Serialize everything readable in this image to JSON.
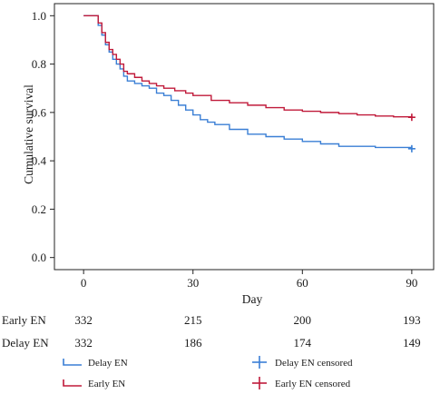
{
  "chart_data": {
    "type": "line",
    "subtype": "kaplan-meier",
    "title": "",
    "xlabel": "Day",
    "ylabel": "Cumulative survival",
    "xlim": [
      -8,
      96
    ],
    "ylim": [
      -0.05,
      1.05
    ],
    "xticks": [
      0,
      30,
      60,
      90
    ],
    "yticks": [
      "0.0",
      "0.2",
      "0.4",
      "0.6",
      "0.8",
      "1.0"
    ],
    "grid": false,
    "series": [
      {
        "name": "Delay EN",
        "color": "#3a7fd5",
        "points": [
          [
            0,
            1.0
          ],
          [
            3,
            1.0
          ],
          [
            4,
            0.96
          ],
          [
            5,
            0.92
          ],
          [
            6,
            0.88
          ],
          [
            7,
            0.85
          ],
          [
            8,
            0.82
          ],
          [
            9,
            0.8
          ],
          [
            10,
            0.78
          ],
          [
            11,
            0.75
          ],
          [
            12,
            0.73
          ],
          [
            14,
            0.72
          ],
          [
            16,
            0.71
          ],
          [
            18,
            0.7
          ],
          [
            20,
            0.68
          ],
          [
            22,
            0.67
          ],
          [
            24,
            0.65
          ],
          [
            26,
            0.63
          ],
          [
            28,
            0.61
          ],
          [
            30,
            0.59
          ],
          [
            32,
            0.57
          ],
          [
            34,
            0.56
          ],
          [
            36,
            0.55
          ],
          [
            40,
            0.53
          ],
          [
            45,
            0.51
          ],
          [
            50,
            0.5
          ],
          [
            55,
            0.49
          ],
          [
            60,
            0.48
          ],
          [
            65,
            0.47
          ],
          [
            70,
            0.46
          ],
          [
            80,
            0.455
          ],
          [
            90,
            0.45
          ]
        ],
        "censor_at": [
          90,
          0.45
        ]
      },
      {
        "name": "Early EN",
        "color": "#c01a3a",
        "points": [
          [
            0,
            1.0
          ],
          [
            3,
            1.0
          ],
          [
            4,
            0.97
          ],
          [
            5,
            0.93
          ],
          [
            6,
            0.89
          ],
          [
            7,
            0.86
          ],
          [
            8,
            0.84
          ],
          [
            9,
            0.82
          ],
          [
            10,
            0.8
          ],
          [
            11,
            0.77
          ],
          [
            12,
            0.76
          ],
          [
            14,
            0.745
          ],
          [
            16,
            0.73
          ],
          [
            18,
            0.72
          ],
          [
            20,
            0.71
          ],
          [
            22,
            0.7
          ],
          [
            25,
            0.69
          ],
          [
            28,
            0.68
          ],
          [
            30,
            0.67
          ],
          [
            35,
            0.65
          ],
          [
            40,
            0.64
          ],
          [
            45,
            0.63
          ],
          [
            50,
            0.62
          ],
          [
            55,
            0.61
          ],
          [
            60,
            0.605
          ],
          [
            65,
            0.6
          ],
          [
            70,
            0.595
          ],
          [
            75,
            0.59
          ],
          [
            80,
            0.585
          ],
          [
            85,
            0.582
          ],
          [
            90,
            0.58
          ]
        ],
        "censor_at": [
          90,
          0.58
        ]
      }
    ],
    "risk_table": {
      "times": [
        0,
        30,
        60,
        90
      ],
      "rows": [
        {
          "label": "Early EN",
          "values": [
            "332",
            "215",
            "200",
            "193"
          ]
        },
        {
          "label": "Delay EN",
          "values": [
            "332",
            "186",
            "174",
            "149"
          ]
        }
      ]
    },
    "legend": {
      "placement": "bottom",
      "items": [
        {
          "label": "Delay EN",
          "kind": "line",
          "color": "#3a7fd5"
        },
        {
          "label": "Delay EN censored",
          "kind": "censor",
          "color": "#3a7fd5"
        },
        {
          "label": "Early EN",
          "kind": "line",
          "color": "#c01a3a"
        },
        {
          "label": "Early EN censored",
          "kind": "censor",
          "color": "#c01a3a"
        }
      ]
    }
  }
}
